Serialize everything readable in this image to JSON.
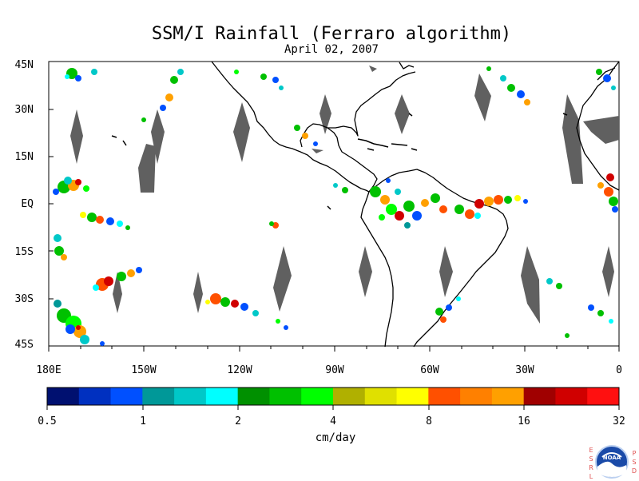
{
  "map": {
    "title": "SSM/I Rainfall (Ferraro algorithm)",
    "date": "April 02, 2007",
    "lat_labels": [
      "45N",
      "30N",
      "15N",
      "EQ",
      "15S",
      "30S",
      "45S"
    ],
    "lon_labels": [
      "180E",
      "150W",
      "120W",
      "90W",
      "60W",
      "30W",
      "0"
    ],
    "lat_range": [
      -45,
      45
    ],
    "lon_range": [
      -180,
      0
    ],
    "no_data_color": "#606060",
    "coastline_color": "#000000"
  },
  "colorbar": {
    "unit": "cm/day",
    "tick_labels": [
      "0.5",
      "1",
      "2",
      "4",
      "8",
      "16",
      "32"
    ],
    "colors": [
      "#001070",
      "#0030c0",
      "#0050ff",
      "#009898",
      "#00c8c8",
      "#00ffff",
      "#009000",
      "#00c000",
      "#00ff00",
      "#b0b000",
      "#e0e000",
      "#ffff00",
      "#ff5000",
      "#ff8000",
      "#ffa000",
      "#a00000",
      "#d00000",
      "#ff1010"
    ]
  },
  "logo": {
    "name": "NOAA",
    "left_letters": [
      "E",
      "S",
      "R",
      "L"
    ],
    "right_letters": [
      "P",
      "S",
      "D"
    ]
  }
}
